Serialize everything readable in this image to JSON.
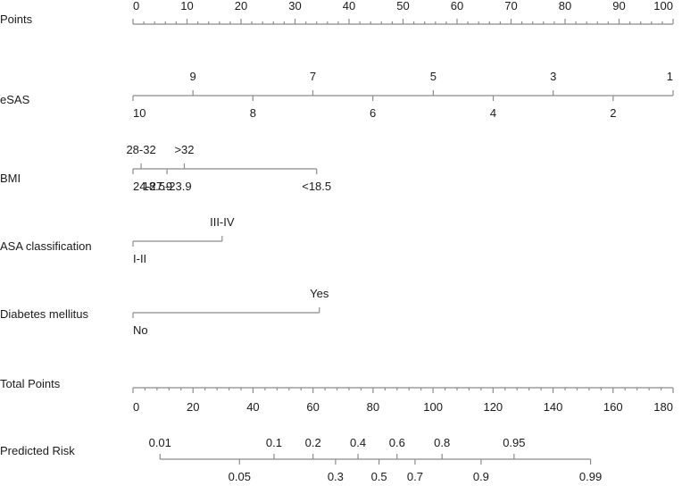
{
  "chart_data": {
    "type": "nomogram",
    "title": "",
    "scale_min": 0,
    "scale_max": 100,
    "rows": [
      {
        "id": "points",
        "label": "Points",
        "kind": "points-axis",
        "ticks": [
          0,
          10,
          20,
          30,
          40,
          50,
          60,
          70,
          80,
          90,
          100
        ],
        "minor_step": 2
      },
      {
        "id": "esas",
        "label": "eSAS",
        "kind": "variable",
        "range_points": [
          0,
          100
        ],
        "ticks": [
          {
            "label": "10",
            "points": 0,
            "side": "below"
          },
          {
            "label": "9",
            "points": 11.1,
            "side": "above"
          },
          {
            "label": "8",
            "points": 22.2,
            "side": "below"
          },
          {
            "label": "7",
            "points": 33.3,
            "side": "above"
          },
          {
            "label": "6",
            "points": 44.4,
            "side": "below"
          },
          {
            "label": "5",
            "points": 55.6,
            "side": "above"
          },
          {
            "label": "4",
            "points": 66.7,
            "side": "below"
          },
          {
            "label": "3",
            "points": 77.8,
            "side": "above"
          },
          {
            "label": "2",
            "points": 88.9,
            "side": "below"
          },
          {
            "label": "1",
            "points": 100,
            "side": "above"
          }
        ]
      },
      {
        "id": "bmi",
        "label": "BMI",
        "kind": "variable",
        "range_points": [
          0,
          34
        ],
        "ticks": [
          {
            "label": "24-27.9",
            "points": 0,
            "side": "below"
          },
          {
            "label": "28-32",
            "points": 1.5,
            "side": "above"
          },
          {
            "label": "18.5-23.9",
            "points": 6.3,
            "side": "below"
          },
          {
            "label": ">32",
            "points": 9.5,
            "side": "above"
          },
          {
            "label": "<18.5",
            "points": 34,
            "side": "below"
          }
        ]
      },
      {
        "id": "asa",
        "label": "ASA classification",
        "kind": "variable",
        "range_points": [
          0,
          16.5
        ],
        "ticks": [
          {
            "label": "I-II",
            "points": 0,
            "side": "below"
          },
          {
            "label": "III-IV",
            "points": 16.5,
            "side": "above"
          }
        ]
      },
      {
        "id": "diabetes",
        "label": "Diabetes mellitus",
        "kind": "variable",
        "range_points": [
          0,
          34.5
        ],
        "ticks": [
          {
            "label": "No",
            "points": 0,
            "side": "below"
          },
          {
            "label": "Yes",
            "points": 34.5,
            "side": "above"
          }
        ]
      },
      {
        "id": "total",
        "label": "Total Points",
        "kind": "total-axis",
        "min": 0,
        "max": 180,
        "ticks": [
          0,
          20,
          40,
          60,
          80,
          100,
          120,
          140,
          160,
          180
        ],
        "minor_step": 4
      },
      {
        "id": "risk",
        "label": "Predicted Risk",
        "kind": "risk-axis",
        "total_min": 0,
        "total_max": 180,
        "range_total": [
          9,
          152.5
        ],
        "ticks": [
          {
            "label": "0.01",
            "total": 9,
            "side": "above"
          },
          {
            "label": "0.05",
            "total": 35.5,
            "side": "below"
          },
          {
            "label": "0.1",
            "total": 47,
            "side": "above"
          },
          {
            "label": "0.2",
            "total": 60,
            "side": "above"
          },
          {
            "label": "0.3",
            "total": 67.5,
            "side": "below"
          },
          {
            "label": "0.4",
            "total": 75,
            "side": "above"
          },
          {
            "label": "0.5",
            "total": 82,
            "side": "below"
          },
          {
            "label": "0.6",
            "total": 88,
            "side": "above"
          },
          {
            "label": "0.7",
            "total": 94,
            "side": "below"
          },
          {
            "label": "0.8",
            "total": 103,
            "side": "above"
          },
          {
            "label": "0.9",
            "total": 116,
            "side": "below"
          },
          {
            "label": "0.95",
            "total": 127,
            "side": "above"
          },
          {
            "label": "0.99",
            "total": 152.5,
            "side": "below"
          }
        ]
      }
    ]
  }
}
